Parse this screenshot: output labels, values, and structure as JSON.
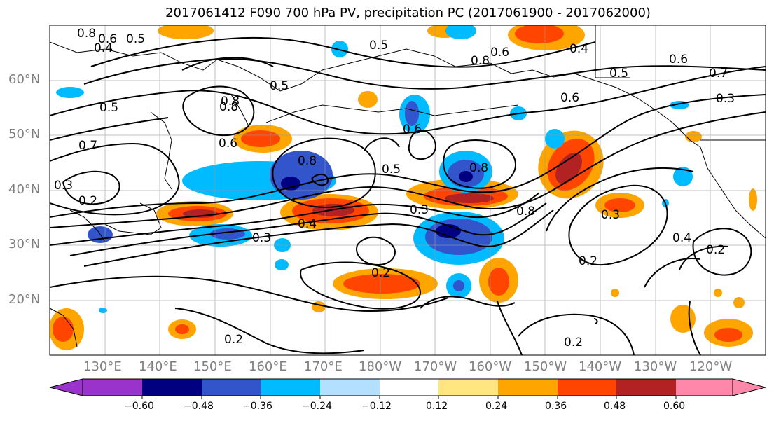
{
  "title": "2017061412 F090 700 hPa PV, precipitation PC (2017061900 - 2017062000)",
  "lat_labels": [
    "60°N",
    "50°N",
    "40°N",
    "30°N",
    "20°N"
  ],
  "lon_labels": [
    "130°E",
    "140°E",
    "150°E",
    "160°E",
    "170°E",
    "180°W",
    "170°W",
    "160°W",
    "150°W",
    "140°W",
    "130°W",
    "120°W"
  ],
  "colorbar": {
    "colors": [
      "#9933cc",
      "#000080",
      "#3355cc",
      "#00bbff",
      "#b3e0ff",
      "#ffffff",
      "#ffe680",
      "#ffa500",
      "#ff4500",
      "#b22222",
      "#ff88aa"
    ],
    "tick_labels": [
      "−0.60",
      "−0.48",
      "−0.36",
      "−0.24",
      "−0.12",
      "0.12",
      "0.24",
      "0.36",
      "0.48",
      "0.60"
    ]
  },
  "contour_labels": [
    "0.8",
    "0.6",
    "0.5",
    "0.4",
    "0.5",
    "0.8",
    "0.5",
    "0.7",
    "0.3",
    "0.2",
    "0.6",
    "0.8",
    "0.5",
    "0.8",
    "0.6",
    "0.8",
    "0.5",
    "0.3",
    "0.4",
    "0.3",
    "0.2",
    "0.2",
    "0.6",
    "0.4",
    "0.7",
    "0.3",
    "0.2",
    "0.2",
    "0.2",
    "0.8",
    "0.3",
    "0.8",
    "0.4",
    "0.6",
    "0.6",
    "0.5"
  ]
}
